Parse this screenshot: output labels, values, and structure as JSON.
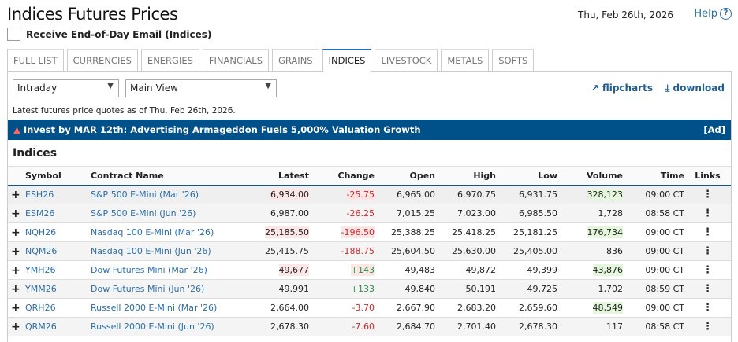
{
  "header": {
    "title": "Indices Futures Prices",
    "date": "Thu, Feb 26th, 2026",
    "help": "Help",
    "help_icon": "question-circle-icon"
  },
  "email": {
    "label": "Receive End-of-Day Email (Indices)",
    "checked": false
  },
  "tabs": [
    {
      "label": "FULL LIST"
    },
    {
      "label": "CURRENCIES"
    },
    {
      "label": "ENERGIES"
    },
    {
      "label": "FINANCIALS"
    },
    {
      "label": "GRAINS"
    },
    {
      "label": "INDICES",
      "active": true
    },
    {
      "label": "LIVESTOCK"
    },
    {
      "label": "METALS"
    },
    {
      "label": "SOFTS"
    }
  ],
  "controls": {
    "period": "Intraday",
    "view": "Main View",
    "flipcharts": "flipcharts",
    "download": "download"
  },
  "info": "Latest futures price quotes as of Thu, Feb 26th, 2026.",
  "banner": {
    "text": "Invest by MAR 12th: Advertising Armageddon Fuels 5,000% Valuation Growth",
    "ad": "[Ad]",
    "icon": "siren-icon"
  },
  "section": "Indices",
  "colors": {
    "accent": "#00508a",
    "negative": "#d0282b",
    "positive": "#2c8f4a"
  },
  "table": {
    "headers": [
      "Symbol",
      "Contract Name",
      "Latest",
      "Change",
      "Open",
      "High",
      "Low",
      "Volume",
      "Time",
      "Links"
    ],
    "rows": [
      {
        "symbol": "ESH26",
        "name": "S&P 500 E-Mini (Mar '26)",
        "latest": "6,934.00",
        "change": "-25.75",
        "open": "6,965.00",
        "high": "6,970.75",
        "low": "6,931.75",
        "volume": "328,123",
        "time": "09:00 CT",
        "hl_latest": true,
        "hl_change": true,
        "hl_volume": true
      },
      {
        "symbol": "ESM26",
        "name": "S&P 500 E-Mini (Jun '26)",
        "latest": "6,987.00",
        "change": "-26.25",
        "open": "7,015.25",
        "high": "7,023.00",
        "low": "6,985.50",
        "volume": "1,728",
        "time": "08:58 CT"
      },
      {
        "symbol": "NQH26",
        "name": "Nasdaq 100 E-Mini (Mar '26)",
        "latest": "25,185.50",
        "change": "-196.50",
        "open": "25,388.25",
        "high": "25,418.25",
        "low": "25,181.25",
        "volume": "176,734",
        "time": "09:00 CT",
        "hl_latest": true,
        "hl_change": true,
        "hl_volume": true
      },
      {
        "symbol": "NQM26",
        "name": "Nasdaq 100 E-Mini (Jun '26)",
        "latest": "25,415.75",
        "change": "-188.75",
        "open": "25,604.50",
        "high": "25,630.00",
        "low": "25,405.00",
        "volume": "836",
        "time": "09:00 CT"
      },
      {
        "symbol": "YMH26",
        "name": "Dow Futures Mini (Mar '26)",
        "latest": "49,677",
        "change": "+143",
        "open": "49,483",
        "high": "49,872",
        "low": "49,399",
        "volume": "43,876",
        "time": "09:00 CT",
        "hl_latest": true,
        "hl_change": true,
        "hl_volume": true
      },
      {
        "symbol": "YMM26",
        "name": "Dow Futures Mini (Jun '26)",
        "latest": "49,991",
        "change": "+133",
        "open": "49,840",
        "high": "50,191",
        "low": "49,725",
        "volume": "1,702",
        "time": "08:59 CT"
      },
      {
        "symbol": "QRH26",
        "name": "Russell 2000 E-Mini (Mar '26)",
        "latest": "2,664.00",
        "change": "-3.70",
        "open": "2,667.90",
        "high": "2,683.20",
        "low": "2,659.60",
        "volume": "48,549",
        "time": "09:00 CT",
        "hl_volume": true
      },
      {
        "symbol": "QRM26",
        "name": "Russell 2000 E-Mini (Jun '26)",
        "latest": "2,678.30",
        "change": "-7.60",
        "open": "2,684.70",
        "high": "2,701.40",
        "low": "2,678.30",
        "volume": "117",
        "time": "08:58 CT"
      }
    ]
  }
}
